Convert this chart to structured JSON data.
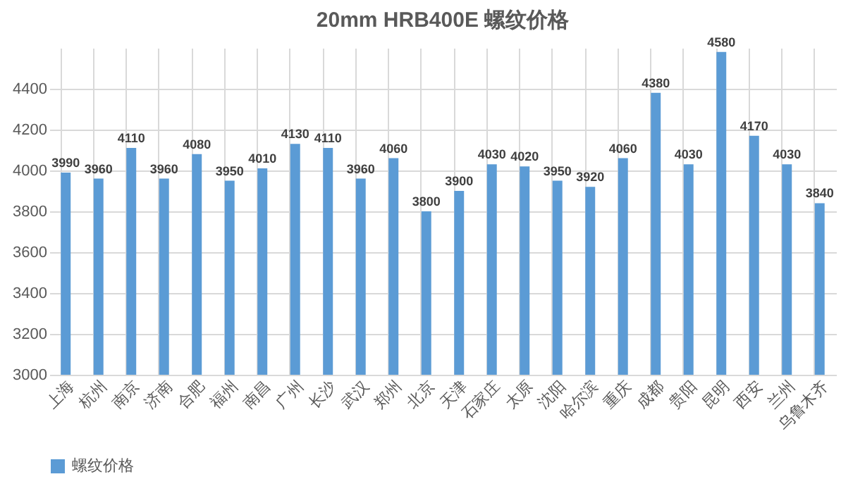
{
  "chart_data": {
    "type": "bar",
    "title": "20mm HRB400E 螺纹价格",
    "categories": [
      "上海",
      "杭州",
      "南京",
      "济南",
      "合肥",
      "福州",
      "南昌",
      "广州",
      "长沙",
      "武汉",
      "郑州",
      "北京",
      "天津",
      "石家庄",
      "太原",
      "沈阳",
      "哈尔滨",
      "重庆",
      "成都",
      "贵阳",
      "昆明",
      "西安",
      "兰州",
      "乌鲁木齐"
    ],
    "series": [
      {
        "name": "螺纹价格",
        "color": "#5b9bd5",
        "values": [
          3990,
          3960,
          4110,
          3960,
          4080,
          3950,
          4010,
          4130,
          4110,
          3960,
          4060,
          3800,
          3900,
          4030,
          4020,
          3950,
          3920,
          4060,
          4380,
          4030,
          4580,
          4170,
          4030,
          3840
        ]
      }
    ],
    "ylim": [
      3000,
      4600
    ],
    "yticks": [
      3000,
      3200,
      3400,
      3600,
      3800,
      4000,
      4200,
      4400
    ],
    "grid": true,
    "legend": "bottom",
    "data_labels": true
  }
}
